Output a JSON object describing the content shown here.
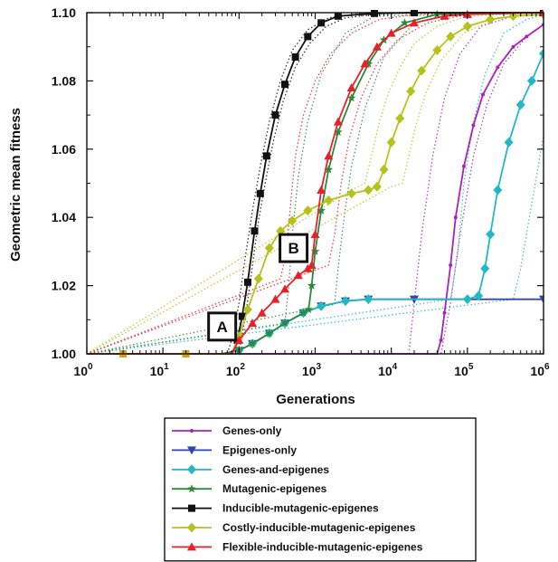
{
  "chart_data": {
    "type": "line",
    "xlabel": "Generations",
    "ylabel": "Geometric mean fitness",
    "x_scale": "log",
    "xlim": [
      1,
      1000000
    ],
    "ylim": [
      1.0,
      1.1
    ],
    "x_ticks": [
      {
        "value": 1,
        "base": "10",
        "exp": "0"
      },
      {
        "value": 10,
        "base": "10",
        "exp": "1"
      },
      {
        "value": 100,
        "base": "10",
        "exp": "2"
      },
      {
        "value": 1000,
        "base": "10",
        "exp": "3"
      },
      {
        "value": 10000,
        "base": "10",
        "exp": "4"
      },
      {
        "value": 100000,
        "base": "10",
        "exp": "5"
      },
      {
        "value": 1000000,
        "base": "10",
        "exp": "6"
      }
    ],
    "y_ticks": [
      "1.00",
      "1.02",
      "1.04",
      "1.06",
      "1.08",
      "1.10"
    ],
    "grid": false,
    "legend_position": "bottom",
    "annotations": [
      {
        "label": "A",
        "x": 60,
        "y": 1.008
      },
      {
        "label": "B",
        "x": 520,
        "y": 1.031
      }
    ],
    "series": [
      {
        "name": "Genes-only",
        "color": "#aa22bb",
        "marker": "dot",
        "points": [
          [
            1,
            1.0
          ],
          [
            40000,
            1.0
          ],
          [
            45000,
            1.004
          ],
          [
            50000,
            1.012
          ],
          [
            60000,
            1.026
          ],
          [
            70000,
            1.04
          ],
          [
            90000,
            1.055
          ],
          [
            120000,
            1.067
          ],
          [
            160000,
            1.076
          ],
          [
            250000,
            1.084
          ],
          [
            400000,
            1.09
          ],
          [
            600000,
            1.093
          ],
          [
            1000000,
            1.0965
          ]
        ],
        "envelopes": [
          [
            [
              1,
              1.0
            ],
            [
              17000,
              1.0
            ],
            [
              20000,
              1.015
            ],
            [
              25000,
              1.035
            ],
            [
              35000,
              1.058
            ],
            [
              50000,
              1.075
            ],
            [
              80000,
              1.088
            ],
            [
              150000,
              1.096
            ],
            [
              400000,
              1.099
            ],
            [
              1000000,
              1.0995
            ]
          ],
          [
            [
              1,
              1.0
            ],
            [
              45000,
              1.0
            ],
            [
              60000,
              1.015
            ],
            [
              80000,
              1.035
            ],
            [
              120000,
              1.058
            ],
            [
              180000,
              1.073
            ],
            [
              300000,
              1.085
            ],
            [
              600000,
              1.093
            ],
            [
              1000000,
              1.0965
            ]
          ]
        ]
      },
      {
        "name": "Epigenes-only",
        "color": "#3344aa",
        "marker": "triangle-down",
        "points": [
          [
            1,
            1.0
          ],
          [
            60,
            1.0
          ],
          [
            100,
            1.001
          ],
          [
            150,
            1.003
          ],
          [
            250,
            1.006
          ],
          [
            400,
            1.009
          ],
          [
            700,
            1.012
          ],
          [
            1200,
            1.014
          ],
          [
            2500,
            1.0155
          ],
          [
            5000,
            1.016
          ],
          [
            20000,
            1.016
          ],
          [
            1000000,
            1.016
          ]
        ],
        "envelopes": []
      },
      {
        "name": "Genes-and-epigenes",
        "color": "#22b8c4",
        "marker": "diamond",
        "points": [
          [
            1,
            1.0
          ],
          [
            60,
            1.0
          ],
          [
            100,
            1.001
          ],
          [
            150,
            1.003
          ],
          [
            250,
            1.006
          ],
          [
            400,
            1.009
          ],
          [
            700,
            1.012
          ],
          [
            1200,
            1.014
          ],
          [
            2500,
            1.0155
          ],
          [
            5000,
            1.016
          ],
          [
            100000,
            1.016
          ],
          [
            140000,
            1.017
          ],
          [
            170000,
            1.025
          ],
          [
            200000,
            1.035
          ],
          [
            250000,
            1.048
          ],
          [
            350000,
            1.062
          ],
          [
            500000,
            1.073
          ],
          [
            700000,
            1.08
          ],
          [
            1000000,
            1.088
          ]
        ],
        "envelopes": [
          [
            [
              1,
              1.0
            ],
            [
              60000,
              1.016
            ],
            [
              75000,
              1.03
            ],
            [
              90000,
              1.05
            ],
            [
              120000,
              1.068
            ],
            [
              170000,
              1.082
            ],
            [
              300000,
              1.094
            ],
            [
              600000,
              1.098
            ],
            [
              1000000,
              1.0995
            ]
          ],
          [
            [
              1,
              1.0
            ],
            [
              400000,
              1.016
            ],
            [
              500000,
              1.025
            ],
            [
              650000,
              1.04
            ],
            [
              850000,
              1.055
            ],
            [
              1000000,
              1.064
            ]
          ]
        ]
      },
      {
        "name": "Mutagenic-epigenes",
        "color": "#2c8a3a",
        "marker": "star",
        "points": [
          [
            1,
            1.0
          ],
          [
            60,
            1.0
          ],
          [
            100,
            1.001
          ],
          [
            150,
            1.003
          ],
          [
            250,
            1.006
          ],
          [
            400,
            1.009
          ],
          [
            700,
            1.012
          ],
          [
            820,
            1.013
          ],
          [
            900,
            1.02
          ],
          [
            1000,
            1.03
          ],
          [
            1200,
            1.042
          ],
          [
            1500,
            1.054
          ],
          [
            2000,
            1.065
          ],
          [
            3000,
            1.075
          ],
          [
            5000,
            1.085
          ],
          [
            8000,
            1.092
          ],
          [
            15000,
            1.097
          ],
          [
            40000,
            1.0995
          ],
          [
            1000000,
            1.1
          ]
        ],
        "envelopes": [
          [
            [
              1,
              1.0
            ],
            [
              400,
              1.009
            ],
            [
              450,
              1.02
            ],
            [
              500,
              1.035
            ],
            [
              600,
              1.052
            ],
            [
              800,
              1.068
            ],
            [
              1200,
              1.082
            ],
            [
              2500,
              1.094
            ],
            [
              6000,
              1.099
            ],
            [
              1000000,
              1.1
            ]
          ],
          [
            [
              1,
              1.0
            ],
            [
              1800,
              1.0145
            ],
            [
              2000,
              1.025
            ],
            [
              2400,
              1.04
            ],
            [
              3000,
              1.055
            ],
            [
              4500,
              1.072
            ],
            [
              8000,
              1.087
            ],
            [
              20000,
              1.097
            ],
            [
              60000,
              1.0995
            ],
            [
              1000000,
              1.1
            ]
          ]
        ]
      },
      {
        "name": "Inducible-mutagenic-epigenes",
        "color": "#111111",
        "marker": "square",
        "points": [
          [
            1,
            1.0
          ],
          [
            80,
            1.0
          ],
          [
            95,
            1.004
          ],
          [
            110,
            1.011
          ],
          [
            130,
            1.021
          ],
          [
            160,
            1.036
          ],
          [
            190,
            1.047
          ],
          [
            230,
            1.058
          ],
          [
            300,
            1.07
          ],
          [
            400,
            1.079
          ],
          [
            550,
            1.087
          ],
          [
            800,
            1.093
          ],
          [
            1200,
            1.097
          ],
          [
            2000,
            1.099
          ],
          [
            6000,
            1.0998
          ],
          [
            20000,
            1.1
          ],
          [
            1000000,
            1.1
          ]
        ],
        "envelopes": [
          [
            [
              1,
              1.0
            ],
            [
              70,
              1.0
            ],
            [
              85,
              1.006
            ],
            [
              100,
              1.015
            ],
            [
              120,
              1.028
            ],
            [
              150,
              1.042
            ],
            [
              190,
              1.055
            ],
            [
              250,
              1.068
            ],
            [
              350,
              1.08
            ],
            [
              500,
              1.089
            ],
            [
              800,
              1.095
            ],
            [
              1500,
              1.0985
            ],
            [
              4000,
              1.0998
            ],
            [
              1000000,
              1.1
            ]
          ],
          [
            [
              1,
              1.0
            ],
            [
              90,
              1.0
            ],
            [
              105,
              1.003
            ],
            [
              125,
              1.013
            ],
            [
              150,
              1.026
            ],
            [
              180,
              1.039
            ],
            [
              220,
              1.05
            ],
            [
              280,
              1.062
            ],
            [
              380,
              1.074
            ],
            [
              550,
              1.084
            ],
            [
              850,
              1.091
            ],
            [
              1400,
              1.096
            ],
            [
              2500,
              1.0985
            ],
            [
              8000,
              1.0998
            ],
            [
              1000000,
              1.1
            ]
          ]
        ]
      },
      {
        "name": "Costly-inducible-mutagenic-epigenes",
        "color": "#b6c21a",
        "marker": "diamond",
        "points": [
          [
            1,
            1.0
          ],
          [
            80,
            1.0
          ],
          [
            100,
            1.005
          ],
          [
            130,
            1.013
          ],
          [
            180,
            1.022
          ],
          [
            250,
            1.031
          ],
          [
            350,
            1.036
          ],
          [
            500,
            1.039
          ],
          [
            800,
            1.042
          ],
          [
            1500,
            1.045
          ],
          [
            3000,
            1.047
          ],
          [
            5000,
            1.048
          ],
          [
            6500,
            1.049
          ],
          [
            8000,
            1.054
          ],
          [
            10000,
            1.062
          ],
          [
            13000,
            1.069
          ],
          [
            18000,
            1.077
          ],
          [
            25000,
            1.083
          ],
          [
            40000,
            1.089
          ],
          [
            60000,
            1.093
          ],
          [
            100000,
            1.096
          ],
          [
            200000,
            1.098
          ],
          [
            400000,
            1.099
          ],
          [
            1000000,
            1.0995
          ]
        ],
        "envelopes": [
          [
            [
              1,
              1.0
            ],
            [
              3000,
              1.048
            ],
            [
              4500,
              1.05
            ],
            [
              5500,
              1.058
            ],
            [
              7000,
              1.068
            ],
            [
              9000,
              1.076
            ],
            [
              13000,
              1.084
            ],
            [
              20000,
              1.091
            ],
            [
              40000,
              1.096
            ],
            [
              100000,
              1.099
            ],
            [
              1000000,
              1.1
            ]
          ],
          [
            [
              1,
              1.0
            ],
            [
              10000,
              1.049
            ],
            [
              14000,
              1.05
            ],
            [
              17000,
              1.058
            ],
            [
              21000,
              1.067
            ],
            [
              28000,
              1.076
            ],
            [
              45000,
              1.086
            ],
            [
              90000,
              1.094
            ],
            [
              250000,
              1.0985
            ],
            [
              1000000,
              1.0995
            ]
          ]
        ]
      },
      {
        "name": "Flexible-inducible-mutagenic-epigenes",
        "color": "#e8202a",
        "marker": "triangle-up",
        "points": [
          [
            1,
            1.0
          ],
          [
            80,
            1.0
          ],
          [
            100,
            1.004
          ],
          [
            150,
            1.009
          ],
          [
            200,
            1.012
          ],
          [
            300,
            1.016
          ],
          [
            400,
            1.019
          ],
          [
            600,
            1.023
          ],
          [
            800,
            1.025
          ],
          [
            900,
            1.026
          ],
          [
            1000,
            1.035
          ],
          [
            1200,
            1.048
          ],
          [
            1500,
            1.058
          ],
          [
            2000,
            1.068
          ],
          [
            3000,
            1.078
          ],
          [
            4500,
            1.085
          ],
          [
            6500,
            1.09
          ],
          [
            10000,
            1.094
          ],
          [
            20000,
            1.097
          ],
          [
            50000,
            1.099
          ],
          [
            100000,
            1.0995
          ],
          [
            1000000,
            1.1
          ]
        ],
        "envelopes": [
          [
            [
              1,
              1.0
            ],
            [
              350,
              1.022
            ],
            [
              420,
              1.03
            ],
            [
              480,
              1.045
            ],
            [
              550,
              1.058
            ],
            [
              700,
              1.07
            ],
            [
              1000,
              1.08
            ],
            [
              1600,
              1.088
            ],
            [
              3000,
              1.094
            ],
            [
              7000,
              1.098
            ],
            [
              20000,
              1.0995
            ],
            [
              1000000,
              1.1
            ]
          ],
          [
            [
              1,
              1.0
            ],
            [
              1500,
              1.026
            ],
            [
              1800,
              1.035
            ],
            [
              2200,
              1.05
            ],
            [
              2800,
              1.063
            ],
            [
              4000,
              1.075
            ],
            [
              6500,
              1.085
            ],
            [
              12000,
              1.092
            ],
            [
              30000,
              1.097
            ],
            [
              100000,
              1.0995
            ],
            [
              1000000,
              1.1
            ]
          ]
        ]
      }
    ]
  }
}
